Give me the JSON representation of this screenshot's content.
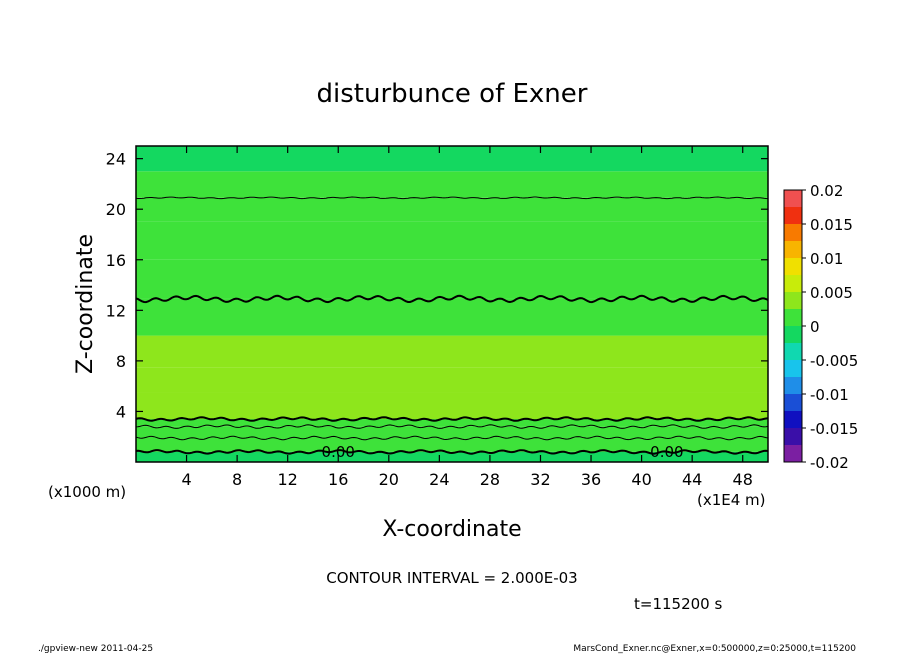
{
  "chart_data": {
    "type": "heatmap",
    "title": "disturbunce of Exner",
    "xlabel": "X-coordinate",
    "ylabel": "Z-coordinate",
    "x_unit_note": "(x1000 m)",
    "x_scale_note": "(x1E4 m)",
    "xlim": [
      0,
      50
    ],
    "ylim": [
      0,
      25
    ],
    "x_ticks": [
      4,
      8,
      12,
      16,
      20,
      24,
      28,
      32,
      36,
      40,
      44,
      48
    ],
    "y_ticks": [
      4,
      8,
      12,
      16,
      20,
      24
    ],
    "x_tick_labels": [
      "4",
      "8",
      "12",
      "16",
      "20",
      "24",
      "28",
      "32",
      "36",
      "40",
      "44",
      "48"
    ],
    "y_tick_labels": [
      "4",
      "8",
      "12",
      "16",
      "20",
      "24"
    ],
    "contour_interval_text": "CONTOUR INTERVAL = 2.000E-03",
    "time_text": "t=115200 s",
    "contour_labels": [
      "0.00",
      "0.00"
    ],
    "contour_levels_z": [
      0.8,
      1.9,
      2.8,
      3.4,
      12.9,
      20.9
    ],
    "colorbar": {
      "levels": [
        -0.02,
        -0.0175,
        -0.015,
        -0.0125,
        -0.01,
        -0.0075,
        -0.005,
        -0.0025,
        0,
        0.0025,
        0.005,
        0.0075,
        0.01,
        0.0125,
        0.015,
        0.0175,
        0.02
      ],
      "colors": [
        "#7b1fa2",
        "#3a0fa8",
        "#1010c0",
        "#1a4fd6",
        "#1f8ee8",
        "#18c4ec",
        "#10d8b0",
        "#14d860",
        "#3ee23a",
        "#8ee61c",
        "#c8ec0a",
        "#f0e000",
        "#f8b400",
        "#f87a00",
        "#f03010",
        "#f05050",
        "#f8a0a0"
      ],
      "tick_values": [
        0.02,
        0.015,
        0.01,
        0.005,
        0,
        -0.005,
        -0.01,
        -0.015,
        -0.02
      ],
      "tick_labels": [
        "0.02",
        "0.015",
        "0.01",
        "0.005",
        "0",
        "-0.005",
        "-0.01",
        "-0.015",
        "-0.02"
      ]
    },
    "field_bands": [
      {
        "z0": 0,
        "z1": 0.8,
        "value": -0.0015
      },
      {
        "z0": 0.8,
        "z1": 1.9,
        "value": 0.0005
      },
      {
        "z0": 1.9,
        "z1": 2.8,
        "value": 0.0015
      },
      {
        "z0": 2.8,
        "z1": 3.4,
        "value": 0.0022
      },
      {
        "z0": 3.4,
        "z1": 5.5,
        "value": 0.0037
      },
      {
        "z0": 5.5,
        "z1": 7.5,
        "value": 0.0032
      },
      {
        "z0": 7.5,
        "z1": 10.0,
        "value": 0.0027
      },
      {
        "z0": 10.0,
        "z1": 12.9,
        "value": 0.0022
      },
      {
        "z0": 12.9,
        "z1": 16.0,
        "value": 0.0017
      },
      {
        "z0": 16.0,
        "z1": 19.0,
        "value": 0.0012
      },
      {
        "z0": 19.0,
        "z1": 20.9,
        "value": 0.0008
      },
      {
        "z0": 20.9,
        "z1": 23.0,
        "value": 0.0003
      },
      {
        "z0": 23.0,
        "z1": 25.0,
        "value": -0.0002
      }
    ]
  },
  "footer": {
    "left": "./gpview-new  2011-04-25",
    "right": "MarsCond_Exner.nc@Exner,x=0:500000,z=0:25000,t=115200"
  }
}
